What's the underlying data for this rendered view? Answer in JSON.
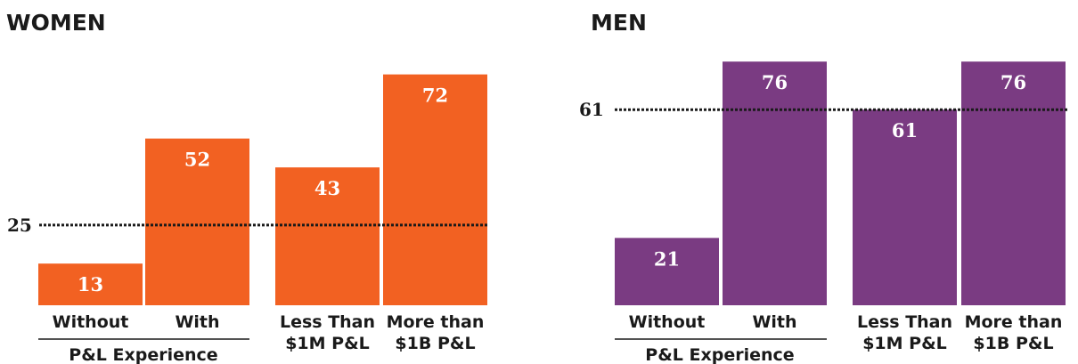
{
  "colors": {
    "women": "#f26122",
    "men": "#7a3b82"
  },
  "chart_data": [
    {
      "type": "bar",
      "title": "WOMEN",
      "categories": [
        "Without",
        "With",
        "Less Than $1M P&L",
        "More than $1B P&L"
      ],
      "category_lines": [
        [
          "Without"
        ],
        [
          "With"
        ],
        [
          "Less Than",
          "$1M P&L"
        ],
        [
          "More than",
          "$1B P&L"
        ]
      ],
      "group_label": "P&L Experience",
      "values": [
        13,
        52,
        43,
        72
      ],
      "reference_line": {
        "value": 25,
        "label": "25"
      },
      "ylim": [
        0,
        78
      ],
      "color": "#f26122"
    },
    {
      "type": "bar",
      "title": "MEN",
      "categories": [
        "Without",
        "With",
        "Less Than $1M P&L",
        "More than $1B P&L"
      ],
      "category_lines": [
        [
          "Without"
        ],
        [
          "With"
        ],
        [
          "Less Than",
          "$1M P&L"
        ],
        [
          "More than",
          "$1B P&L"
        ]
      ],
      "group_label": "P&L Experience",
      "values": [
        21,
        76,
        61,
        76
      ],
      "reference_line": {
        "value": 61,
        "label": "61"
      },
      "ylim": [
        0,
        78
      ],
      "color": "#7a3b82"
    }
  ]
}
